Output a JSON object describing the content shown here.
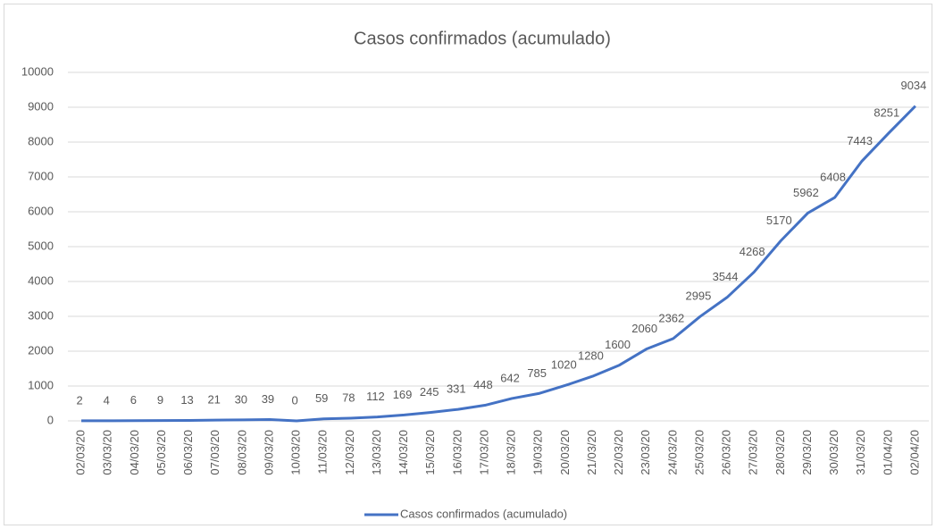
{
  "chart_data": {
    "type": "line",
    "title": "Casos confirmados (acumulado)",
    "categories": [
      "02/03/20",
      "03/03/20",
      "04/03/20",
      "05/03/20",
      "06/03/20",
      "07/03/20",
      "08/03/20",
      "09/03/20",
      "10/03/20",
      "11/03/20",
      "12/03/20",
      "13/03/20",
      "14/03/20",
      "15/03/20",
      "16/03/20",
      "17/03/20",
      "18/03/20",
      "19/03/20",
      "20/03/20",
      "21/03/20",
      "22/03/20",
      "23/03/20",
      "24/03/20",
      "25/03/20",
      "26/03/20",
      "27/03/20",
      "28/03/20",
      "29/03/20",
      "30/03/20",
      "31/03/20",
      "01/04/20",
      "02/04/20"
    ],
    "series": [
      {
        "name": "Casos confirmados (acumulado)",
        "color": "#4472c4",
        "values": [
          2,
          4,
          6,
          9,
          13,
          21,
          30,
          39,
          0,
          59,
          78,
          112,
          169,
          245,
          331,
          448,
          642,
          785,
          1020,
          1280,
          1600,
          2060,
          2362,
          2995,
          3544,
          4268,
          5170,
          5962,
          6408,
          7443,
          8251,
          9034
        ]
      }
    ],
    "ylim": [
      0,
      10000
    ],
    "yticks": [
      0,
      1000,
      2000,
      3000,
      4000,
      5000,
      6000,
      7000,
      8000,
      9000,
      10000
    ],
    "grid": true,
    "legend": "bottom"
  }
}
